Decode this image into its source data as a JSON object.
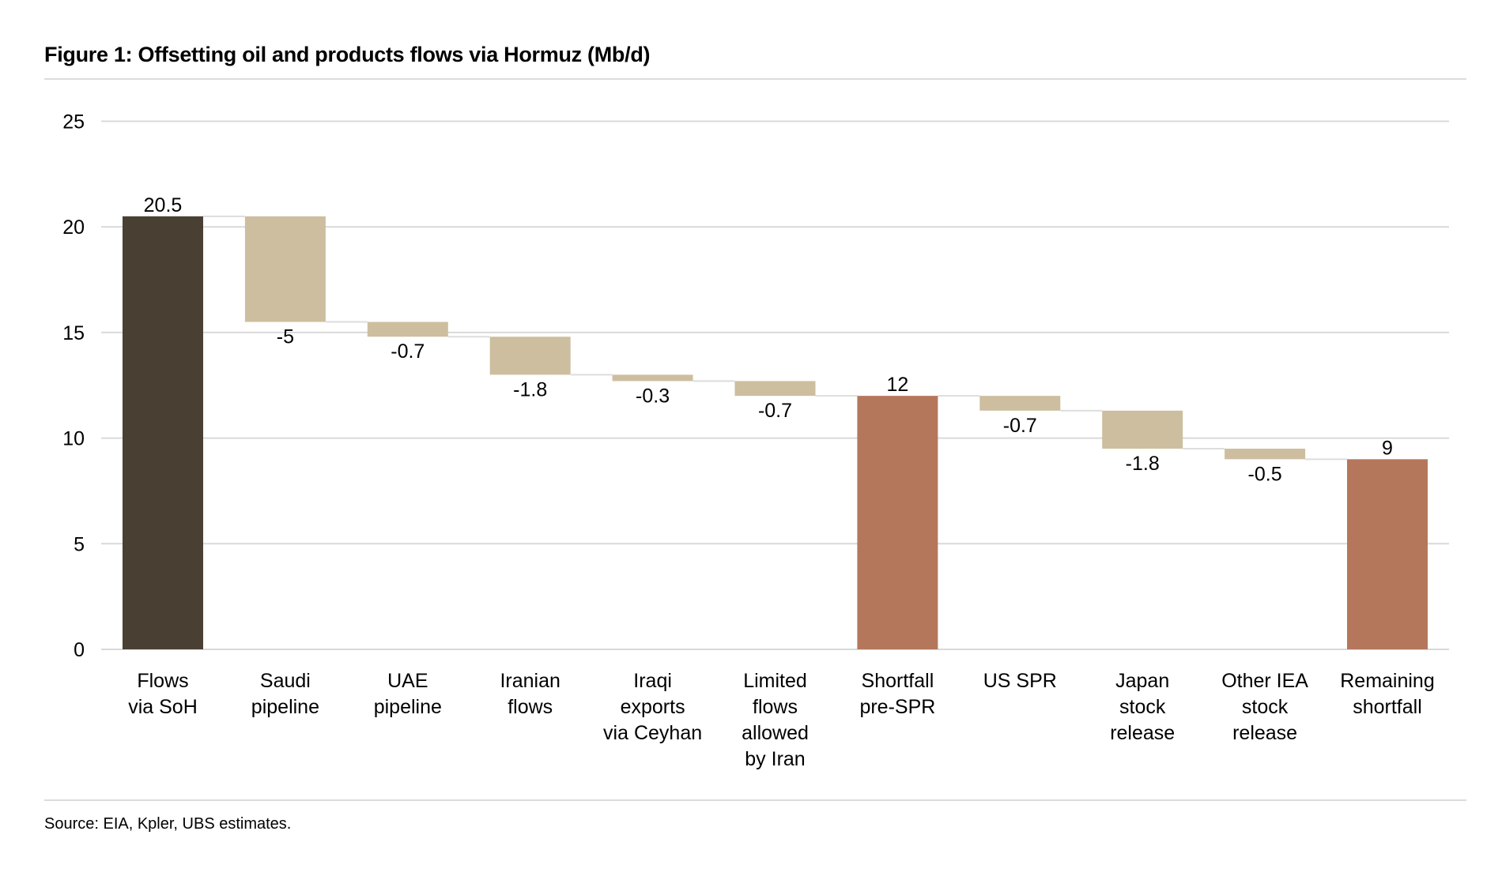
{
  "chart_data": {
    "type": "waterfall",
    "title": "Figure 1: Offsetting oil and products flows via Hormuz (Mb/d)",
    "source": "Source: EIA, Kpler, UBS estimates.",
    "ylim": [
      0,
      25
    ],
    "yticks": [
      0,
      5,
      10,
      15,
      20,
      25
    ],
    "grid": true,
    "categories": [
      [
        "Flows",
        "via SoH"
      ],
      [
        "Saudi",
        "pipeline"
      ],
      [
        "UAE",
        "pipeline"
      ],
      [
        "Iranian",
        "flows"
      ],
      [
        "Iraqi",
        "exports",
        "via Ceyhan"
      ],
      [
        "Limited",
        "flows",
        "allowed",
        "by Iran"
      ],
      [
        "Shortfall",
        "pre-SPR"
      ],
      [
        "US SPR"
      ],
      [
        "Japan",
        "stock",
        "release"
      ],
      [
        "Other IEA",
        "stock",
        "release"
      ],
      [
        "Remaining",
        "shortfall"
      ]
    ],
    "values": [
      20.5,
      -5,
      -0.7,
      -1.8,
      -0.3,
      -0.7,
      12,
      -0.7,
      -1.8,
      -0.5,
      9
    ],
    "labels": [
      "20.5",
      "-5",
      "-0.7",
      "-1.8",
      "-0.3",
      "-0.7",
      "12",
      "-0.7",
      "-1.8",
      "-0.5",
      "9"
    ],
    "kinds": [
      "start",
      "delta",
      "delta",
      "delta",
      "delta",
      "delta",
      "subtotal",
      "delta",
      "delta",
      "delta",
      "total"
    ],
    "colors": {
      "start": "#4a3f33",
      "delta": "#cdbe9f",
      "subtotal": "#b5775c",
      "total": "#b5775c",
      "grid": "#d9d9d9",
      "connector": "#dddddd"
    }
  }
}
